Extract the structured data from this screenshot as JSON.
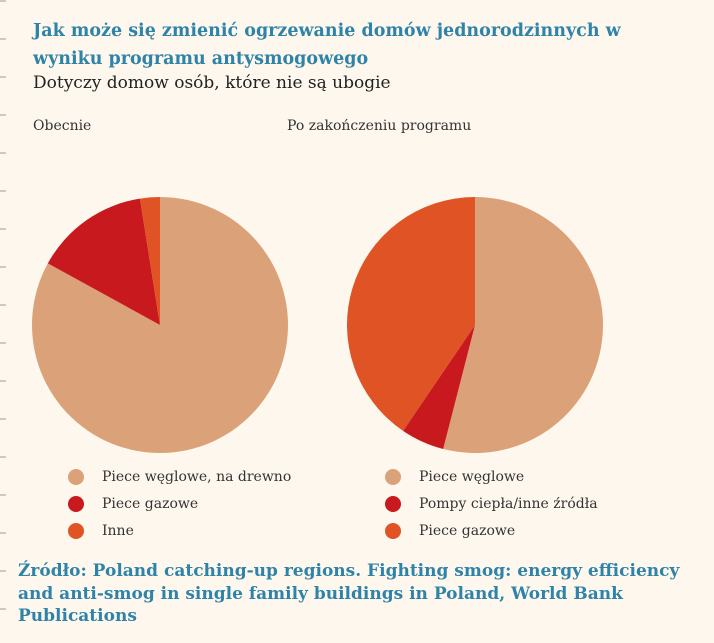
{
  "header": {
    "title": "Jak może się zmienić ogrzewanie domów jednorodzinnych w wyniku programu antysmogowego",
    "subtitle": "Dotyczy domow osób, które nie są ubogie"
  },
  "source": "Źródło: Poland catching-up regions. Fighting smog: energy efficiency and anti-smog in single family buildings in Poland, World Bank Publications",
  "chart_data": [
    {
      "type": "pie",
      "title": "Obecnie",
      "categories": [
        "Piece węglowe, na drewno",
        "Piece gazowe",
        "Inne"
      ],
      "values": [
        83,
        14.5,
        2.5
      ],
      "colors": [
        "#dba27a",
        "#c8191e",
        "#e05325"
      ],
      "legend": "below"
    },
    {
      "type": "pie",
      "title": "Po zakończeniu programu",
      "categories": [
        "Piece węglowe",
        "Pompy ciepła/inne źródła",
        "Piece gazowe"
      ],
      "values": [
        54,
        5.5,
        40.5
      ],
      "colors": [
        "#dba27a",
        "#c8191e",
        "#e05325"
      ],
      "legend": "below"
    }
  ]
}
